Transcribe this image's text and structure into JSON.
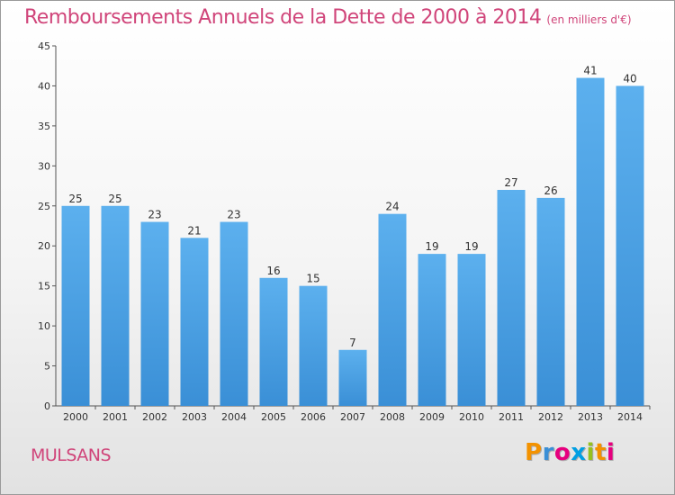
{
  "chart_data": {
    "type": "bar",
    "title": "Remboursements Annuels de la Dette de 2000 à 2014",
    "subtitle": "(en milliers d'€)",
    "categories": [
      "2000",
      "2001",
      "2002",
      "2003",
      "2004",
      "2005",
      "2006",
      "2007",
      "2008",
      "2009",
      "2010",
      "2011",
      "2012",
      "2013",
      "2014"
    ],
    "values": [
      25,
      25,
      23,
      21,
      23,
      16,
      15,
      7,
      24,
      19,
      19,
      27,
      26,
      41,
      40
    ],
    "ylim": [
      0,
      45
    ],
    "yticks": [
      0,
      5,
      10,
      15,
      20,
      25,
      30,
      35,
      40,
      45
    ],
    "grid": false,
    "bar_color": "#3a8fd6",
    "bar_color_top": "#5cb0ee"
  },
  "footer": {
    "place": "MULSANS",
    "brand_letters": [
      "P",
      "r",
      "o",
      "x",
      "i",
      "t",
      "i"
    ],
    "brand_colors": [
      "#f39200",
      "#3a8fd6",
      "#e6007e",
      "#009fe3",
      "#95c11f",
      "#f39200",
      "#e6007e"
    ]
  }
}
